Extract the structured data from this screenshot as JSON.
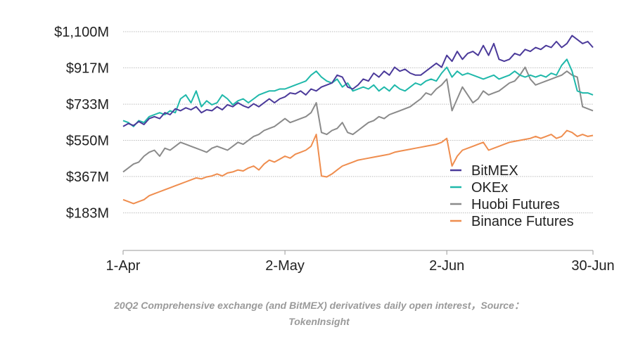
{
  "chart_data": {
    "type": "line",
    "title": "",
    "xlabel": "",
    "ylabel": "",
    "ylim": [
      0,
      1100
    ],
    "y_ticks": [
      {
        "value": 183,
        "label": "$183M"
      },
      {
        "value": 367,
        "label": "$367M"
      },
      {
        "value": 550,
        "label": "$550M"
      },
      {
        "value": 733,
        "label": "$733M"
      },
      {
        "value": 917,
        "label": "$917M"
      },
      {
        "value": 1100,
        "label": "$1,100M"
      }
    ],
    "x_ticks": [
      {
        "day": 0,
        "label": "1-Apr"
      },
      {
        "day": 31,
        "label": "2-May"
      },
      {
        "day": 62,
        "label": "2-Jun"
      },
      {
        "day": 90,
        "label": "30-Jun"
      }
    ],
    "x_days": [
      0,
      1,
      2,
      3,
      4,
      5,
      6,
      7,
      8,
      9,
      10,
      11,
      12,
      13,
      14,
      15,
      16,
      17,
      18,
      19,
      20,
      21,
      22,
      23,
      24,
      25,
      26,
      27,
      28,
      29,
      30,
      31,
      32,
      33,
      34,
      35,
      36,
      37,
      38,
      39,
      40,
      41,
      42,
      43,
      44,
      45,
      46,
      47,
      48,
      49,
      50,
      51,
      52,
      53,
      54,
      55,
      56,
      57,
      58,
      59,
      60,
      61,
      62,
      63,
      64,
      65,
      66,
      67,
      68,
      69,
      70,
      71,
      72,
      73,
      74,
      75,
      76,
      77,
      78,
      79,
      80,
      81,
      82,
      83,
      84,
      85,
      86,
      87,
      88,
      89,
      90
    ],
    "grid": true,
    "legend": "right",
    "series": [
      {
        "name": "BitMEX",
        "color": "#4b3a9a",
        "values": [
          620,
          635,
          625,
          645,
          630,
          660,
          670,
          660,
          690,
          680,
          710,
          700,
          715,
          705,
          720,
          690,
          705,
          700,
          720,
          705,
          730,
          720,
          740,
          725,
          715,
          735,
          720,
          740,
          760,
          740,
          760,
          770,
          790,
          785,
          800,
          780,
          810,
          800,
          820,
          830,
          840,
          880,
          870,
          820,
          810,
          830,
          860,
          850,
          890,
          870,
          900,
          880,
          920,
          900,
          910,
          890,
          880,
          880,
          900,
          920,
          940,
          920,
          980,
          950,
          1000,
          960,
          990,
          1000,
          980,
          1030,
          980,
          1040,
          960,
          950,
          960,
          990,
          980,
          1010,
          1000,
          1020,
          1010,
          1030,
          1020,
          1050,
          1020,
          1040,
          1080,
          1060,
          1040,
          1050,
          1020
        ]
      },
      {
        "name": "OKEx",
        "color": "#1fb8aa",
        "values": [
          650,
          640,
          620,
          650,
          640,
          670,
          680,
          690,
          680,
          700,
          690,
          760,
          780,
          740,
          800,
          720,
          750,
          730,
          740,
          780,
          760,
          730,
          750,
          760,
          740,
          760,
          780,
          790,
          800,
          800,
          810,
          810,
          820,
          830,
          840,
          850,
          880,
          900,
          870,
          850,
          840,
          860,
          820,
          840,
          800,
          810,
          820,
          810,
          830,
          800,
          820,
          800,
          830,
          810,
          800,
          820,
          840,
          830,
          850,
          860,
          850,
          890,
          920,
          870,
          900,
          880,
          890,
          880,
          870,
          860,
          870,
          880,
          860,
          870,
          880,
          900,
          880,
          870,
          880,
          870,
          880,
          870,
          890,
          880,
          930,
          960,
          900,
          800,
          790,
          790,
          780
        ]
      },
      {
        "name": "Huobi Futures",
        "color": "#8a8a8a",
        "values": [
          390,
          410,
          430,
          440,
          470,
          490,
          500,
          470,
          510,
          500,
          520,
          540,
          530,
          520,
          510,
          500,
          490,
          510,
          520,
          510,
          500,
          520,
          540,
          530,
          550,
          570,
          580,
          600,
          610,
          620,
          640,
          660,
          640,
          650,
          660,
          670,
          690,
          740,
          590,
          580,
          600,
          610,
          640,
          590,
          580,
          600,
          620,
          640,
          650,
          670,
          660,
          680,
          690,
          700,
          710,
          720,
          740,
          760,
          790,
          780,
          810,
          830,
          860,
          700,
          760,
          820,
          780,
          740,
          760,
          800,
          780,
          790,
          800,
          820,
          840,
          850,
          880,
          920,
          860,
          830,
          840,
          850,
          860,
          870,
          880,
          900,
          880,
          870,
          720,
          710,
          700
        ]
      },
      {
        "name": "Binance Futures",
        "color": "#ef8d4e",
        "values": [
          250,
          240,
          230,
          240,
          250,
          270,
          280,
          290,
          300,
          310,
          320,
          330,
          340,
          350,
          360,
          355,
          365,
          370,
          380,
          370,
          385,
          390,
          400,
          395,
          410,
          420,
          400,
          430,
          450,
          440,
          455,
          470,
          460,
          480,
          490,
          500,
          520,
          580,
          370,
          365,
          380,
          400,
          420,
          430,
          440,
          450,
          455,
          460,
          465,
          470,
          475,
          480,
          490,
          495,
          500,
          505,
          510,
          515,
          520,
          525,
          530,
          540,
          560,
          420,
          470,
          500,
          510,
          520,
          530,
          540,
          500,
          510,
          520,
          530,
          540,
          545,
          550,
          555,
          560,
          570,
          560,
          570,
          580,
          560,
          570,
          600,
          590,
          570,
          580,
          570,
          575
        ]
      }
    ]
  },
  "caption": {
    "line1": "20Q2 Comprehensive exchange (and BitMEX) derivatives daily open interest，Source：",
    "line2": "TokenInsight"
  }
}
